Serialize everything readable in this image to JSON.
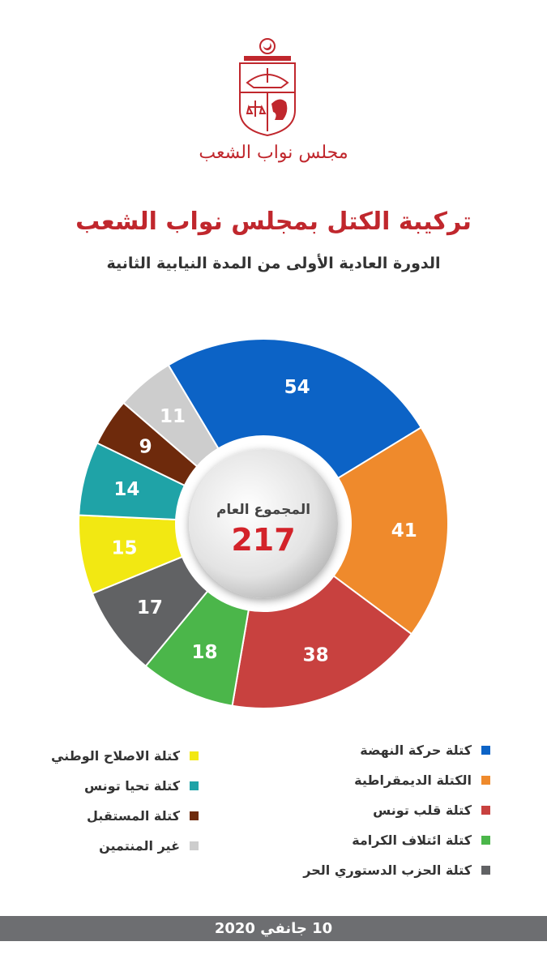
{
  "header": {
    "org_name": "مجلس نواب الشعب",
    "title": "تركيبة الكتل بمجلس نواب الشعب",
    "subtitle": "الدورة العادية الأولى من المدة النيابية الثانية"
  },
  "center": {
    "label": "المجموع العام",
    "total": "217"
  },
  "footer": {
    "date": "10  جانفي 2020"
  },
  "colors": {
    "accent": "#c0272d",
    "footer_bg": "#6d6e71"
  },
  "chart_data": {
    "type": "pie",
    "style": "donut",
    "slices": [
      {
        "label": "كتلة حركة النهضة",
        "value": 54,
        "color": "#0c63c6"
      },
      {
        "label": "الكتلة الديمقراطية",
        "value": 41,
        "color": "#ef8a2c"
      },
      {
        "label": "كتلة قلب تونس",
        "value": 38,
        "color": "#c8413f"
      },
      {
        "label": "كتلة ائتلاف الكرامة",
        "value": 18,
        "color": "#4bb64a"
      },
      {
        "label": "كتلة الحزب الدستوري الحر",
        "value": 17,
        "color": "#616264"
      },
      {
        "label": "كتلة الاصلاح الوطني",
        "value": 15,
        "color": "#f2e812"
      },
      {
        "label": "كتلة تحيا تونس",
        "value": 14,
        "color": "#1fa3a7"
      },
      {
        "label": "كتلة المستقبل",
        "value": 9,
        "color": "#6e2a0c"
      },
      {
        "label": "غير المنتمين",
        "value": 11,
        "color": "#cdcdcd"
      }
    ],
    "legend_right": [
      0,
      1,
      2,
      3,
      4
    ],
    "legend_left": [
      5,
      6,
      7,
      8
    ]
  }
}
